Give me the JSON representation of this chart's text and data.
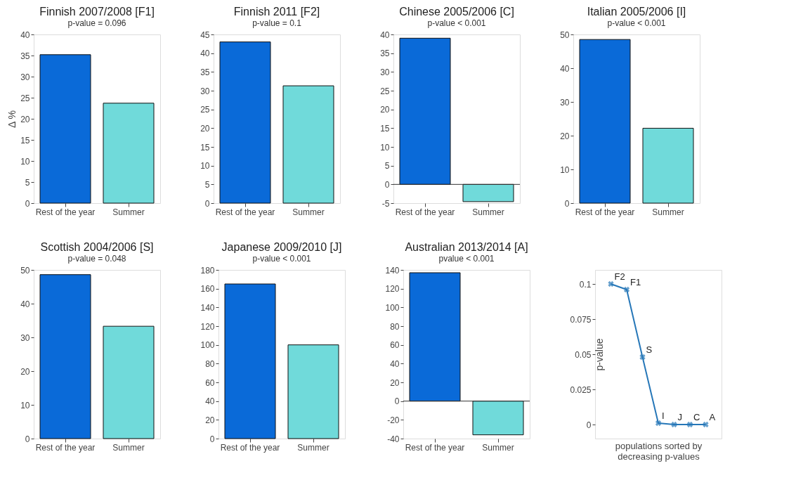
{
  "chart_data": [
    {
      "type": "bar",
      "title": "Finnish 2007/2008 [F1]",
      "subtitle": "p-value = 0.096",
      "ylabel": "Δ %",
      "categories": [
        "Rest of the year",
        "Summer"
      ],
      "values": [
        35.2,
        23.7
      ],
      "colors": [
        "#0a6ad8",
        "#70dada"
      ],
      "ylim": [
        0,
        40
      ],
      "yticks": [
        0,
        5,
        10,
        15,
        20,
        25,
        30,
        35,
        40
      ],
      "grid": false
    },
    {
      "type": "bar",
      "title": "Finnish 2011 [F2]",
      "subtitle": "p-value = 0.1",
      "categories": [
        "Rest of the year",
        "Summer"
      ],
      "values": [
        43,
        31.3
      ],
      "colors": [
        "#0a6ad8",
        "#70dada"
      ],
      "ylim": [
        0,
        45
      ],
      "yticks": [
        0,
        5,
        10,
        15,
        20,
        25,
        30,
        35,
        40,
        45
      ],
      "grid": false
    },
    {
      "type": "bar",
      "title": "Chinese 2005/2006 [C]",
      "subtitle": "p-value < 0.001",
      "categories": [
        "Rest of the year",
        "Summer"
      ],
      "values": [
        39,
        -4.6
      ],
      "colors": [
        "#0a6ad8",
        "#70dada"
      ],
      "ylim": [
        -5,
        40
      ],
      "yticks": [
        -5,
        0,
        5,
        10,
        15,
        20,
        25,
        30,
        35,
        40
      ],
      "grid": false,
      "ref_lines": [
        {
          "axis": "y",
          "value": 0
        }
      ]
    },
    {
      "type": "bar",
      "title": "Italian 2005/2006 [I]",
      "subtitle": "p-value < 0.001",
      "categories": [
        "Rest of the year",
        "Summer"
      ],
      "values": [
        48.5,
        22.2
      ],
      "colors": [
        "#0a6ad8",
        "#70dada"
      ],
      "ylim": [
        0,
        50
      ],
      "yticks": [
        0,
        10,
        20,
        30,
        40,
        50
      ],
      "grid": false
    },
    {
      "type": "bar",
      "title": "Scottish 2004/2006 [S]",
      "subtitle": "p-value = 0.048",
      "categories": [
        "Rest of the year",
        "Summer"
      ],
      "values": [
        48.6,
        33.3
      ],
      "colors": [
        "#0a6ad8",
        "#70dada"
      ],
      "ylim": [
        0,
        50
      ],
      "yticks": [
        0,
        10,
        20,
        30,
        40,
        50
      ],
      "grid": false
    },
    {
      "type": "bar",
      "title": "Japanese 2009/2010 [J]",
      "subtitle": "p-value < 0.001",
      "categories": [
        "Rest of the year",
        "Summer"
      ],
      "values": [
        165,
        100
      ],
      "colors": [
        "#0a6ad8",
        "#70dada"
      ],
      "ylim": [
        0,
        180
      ],
      "yticks": [
        0,
        20,
        40,
        60,
        80,
        100,
        120,
        140,
        160,
        180
      ],
      "grid": false
    },
    {
      "type": "bar",
      "title": "Australian 2013/2014 [A]",
      "subtitle": "pvalue < 0.001",
      "categories": [
        "Rest of the year",
        "Summer"
      ],
      "values": [
        137,
        -36
      ],
      "colors": [
        "#0a6ad8",
        "#70dada"
      ],
      "ylim": [
        -40,
        140
      ],
      "yticks": [
        -40,
        -20,
        0,
        20,
        40,
        60,
        80,
        100,
        120,
        140
      ],
      "grid": false,
      "ref_lines": [
        {
          "axis": "y",
          "value": 0
        }
      ]
    },
    {
      "type": "line",
      "xlabel": "populations sorted by\ndecreasing p-values",
      "ylabel": "p-value",
      "categories": [
        null,
        null,
        null,
        null,
        null,
        null,
        null
      ],
      "series": [
        {
          "color": "#2677b8",
          "values": [
            0.1,
            0.096,
            0.048,
            0.001,
            0,
            0,
            0
          ]
        }
      ],
      "marker": "cross",
      "line_style": "solid",
      "ylim": [
        -0.01,
        0.11
      ],
      "yticks": [
        0,
        0.025,
        0.05,
        0.075,
        0.1
      ],
      "tick_labels": "y",
      "grid": false,
      "annotations": [
        "F2",
        "F1",
        "S",
        "I",
        "J",
        "C",
        "A"
      ]
    }
  ]
}
